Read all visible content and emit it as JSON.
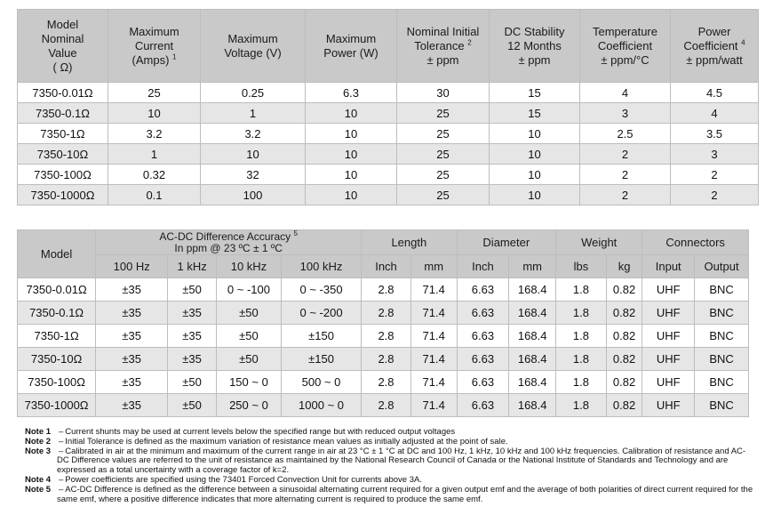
{
  "table1": {
    "headers": {
      "model_lines": [
        "Model",
        "Nominal",
        "Value",
        "( Ω)"
      ],
      "max_current_lines": [
        "Maximum",
        "Current",
        "(Amps)"
      ],
      "max_current_sup": "1",
      "max_voltage_lines": [
        "Maximum",
        "Voltage (V)"
      ],
      "max_power_lines": [
        "Maximum",
        "Power (W)"
      ],
      "tolerance_lines": [
        "Nominal Initial",
        "Tolerance",
        "± ppm"
      ],
      "tolerance_sup": "2",
      "dc_stability_lines": [
        "DC Stability",
        "12 Months",
        "± ppm"
      ],
      "temp_coeff_lines": [
        "Temperature",
        "Coefficient",
        "± ppm/°C"
      ],
      "power_coeff_lines": [
        "Power",
        "Coefficient",
        "± ppm/watt"
      ],
      "power_coeff_sup": "4"
    },
    "rows": [
      [
        "7350-0.01Ω",
        "25",
        "0.25",
        "6.3",
        "30",
        "15",
        "4",
        "4.5"
      ],
      [
        "7350-0.1Ω",
        "10",
        "1",
        "10",
        "25",
        "15",
        "3",
        "4"
      ],
      [
        "7350-1Ω",
        "3.2",
        "3.2",
        "10",
        "25",
        "10",
        "2.5",
        "3.5"
      ],
      [
        "7350-10Ω",
        "1",
        "10",
        "10",
        "25",
        "10",
        "2",
        "3"
      ],
      [
        "7350-100Ω",
        "0.32",
        "32",
        "10",
        "25",
        "10",
        "2",
        "2"
      ],
      [
        "7350-1000Ω",
        "0.1",
        "100",
        "10",
        "25",
        "10",
        "2",
        "2"
      ]
    ]
  },
  "table2": {
    "headers": {
      "model": "Model",
      "acdc_line1": "AC-DC Difference Accuracy",
      "acdc_sup": "5",
      "acdc_line2": "In ppm @ 23 ºC ± 1 ºC",
      "length": "Length",
      "diameter": "Diameter",
      "weight": "Weight",
      "connectors": "Connectors",
      "sub": [
        "100 Hz",
        "1 kHz",
        "10 kHz",
        "100 kHz",
        "Inch",
        "mm",
        "Inch",
        "mm",
        "lbs",
        "kg",
        "Input",
        "Output"
      ]
    },
    "rows": [
      [
        "7350-0.01Ω",
        "±35",
        "±50",
        "0 ~ -100",
        "0 ~ -350",
        "2.8",
        "71.4",
        "6.63",
        "168.4",
        "1.8",
        "0.82",
        "UHF",
        "BNC"
      ],
      [
        "7350-0.1Ω",
        "±35",
        "±35",
        "±50",
        "0 ~ -200",
        "2.8",
        "71.4",
        "6.63",
        "168.4",
        "1.8",
        "0.82",
        "UHF",
        "BNC"
      ],
      [
        "7350-1Ω",
        "±35",
        "±35",
        "±50",
        "±150",
        "2.8",
        "71.4",
        "6.63",
        "168.4",
        "1.8",
        "0.82",
        "UHF",
        "BNC"
      ],
      [
        "7350-10Ω",
        "±35",
        "±35",
        "±50",
        "±150",
        "2.8",
        "71.4",
        "6.63",
        "168.4",
        "1.8",
        "0.82",
        "UHF",
        "BNC"
      ],
      [
        "7350-100Ω",
        "±35",
        "±50",
        "150 ~ 0",
        "500 ~ 0",
        "2.8",
        "71.4",
        "6.63",
        "168.4",
        "1.8",
        "0.82",
        "UHF",
        "BNC"
      ],
      [
        "7350-1000Ω",
        "±35",
        "±50",
        "250 ~ 0",
        "1000 ~ 0",
        "2.8",
        "71.4",
        "6.63",
        "168.4",
        "1.8",
        "0.82",
        "UHF",
        "BNC"
      ]
    ]
  },
  "notes": [
    {
      "label": "Note 1",
      "text": "Current shunts may be used at current levels below the specified range but with reduced output voltages"
    },
    {
      "label": "Note 2",
      "text": "Initial Tolerance is defined as the maximum variation of resistance mean values as initially adjusted at the point of sale."
    },
    {
      "label": "Note 3",
      "text": "Calibrated in air at the minimum and maximum of the current range in air at 23 °C ± 1 °C at DC and 100 Hz, 1 kHz, 10 kHz and 100 kHz frequencies. Calibration of resistance and AC-DC Difference values are referred to the unit of resistance as maintained by the National Research Council of Canada or the National Institute of Standards and Technology and are expressed as a total uncertainty with a coverage factor of k=2."
    },
    {
      "label": "Note 4",
      "text": "Power coefficients are specified using the 73401 Forced Convection Unit for currents above 3A."
    },
    {
      "label": "Note 5",
      "text": "AC-DC Difference is defined as the difference between a sinusoidal alternating current required for a given output emf and the average of both polarities of direct current required for the same emf, where a positive difference indicates that more alternating current is required to produce the same emf."
    }
  ]
}
